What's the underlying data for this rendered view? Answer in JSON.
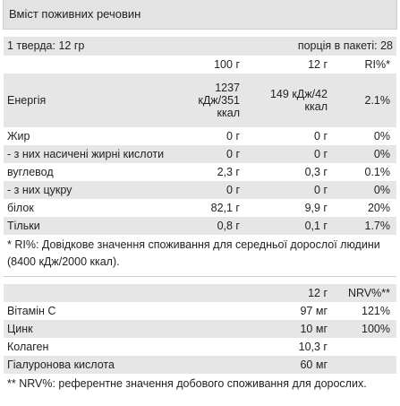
{
  "title": "Вміст поживних речовин",
  "serving": {
    "size": "1 тверда: 12 гр",
    "per_pack": "порція в пакеті: 28"
  },
  "table": {
    "header": [
      "100 г",
      "12 г",
      "RI%*"
    ],
    "rows": [
      [
        "Енергія",
        "1237 кДж/351 ккал",
        "149 кДж/42 ккал",
        "2.1%"
      ],
      [
        "Жир",
        "0 г",
        "0 г",
        "0%"
      ],
      [
        "- з них насичені жирні кислоти",
        "0 г",
        "0 г",
        "0%"
      ],
      [
        "вуглевод",
        "2,3 г",
        "0,3 г",
        "0.1%"
      ],
      [
        "- з них цукру",
        "0 г",
        "0 г",
        "0%"
      ],
      [
        "білок",
        "82,1 г",
        "9,9 г",
        "20%"
      ],
      [
        "Тільки",
        "0,8 г",
        "0,1 г",
        "1.7%"
      ]
    ]
  },
  "footnote": "* RI%: Довідкове значення споживання для середньої дорослої людини (8400 кДж/2000 ккал).",
  "table2": {
    "header": [
      "12 г",
      "NRV%**"
    ],
    "rows": [
      [
        "Вітамін С",
        "97 мг",
        "121%"
      ],
      [
        "Цинк",
        "10 мг",
        "100%"
      ],
      [
        "Колаген",
        "10,3 г",
        null
      ],
      [
        "Гіалуронова кислота",
        "60 мг",
        null
      ]
    ]
  },
  "footnote2": "** NRV%: референтне значення добового споживання для дорослих."
}
